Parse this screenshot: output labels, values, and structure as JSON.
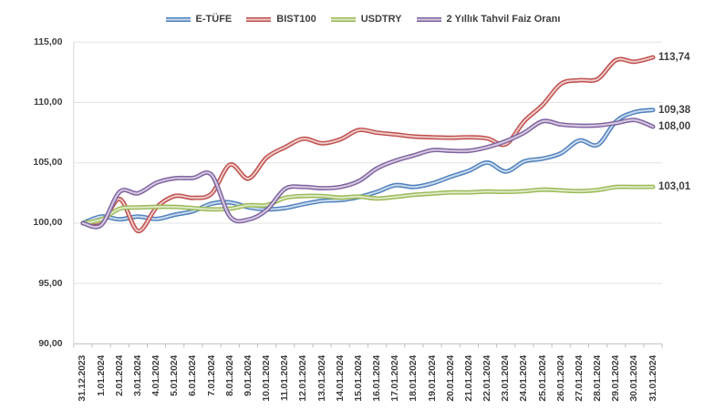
{
  "chart_data": {
    "type": "line",
    "title": "",
    "xlabel": "",
    "ylabel": "",
    "ylim": [
      90,
      115
    ],
    "y_tick_step": 5,
    "y_tick_labels": [
      "90,00",
      "95,00",
      "100,00",
      "105,00",
      "110,00",
      "115,00"
    ],
    "grid": "horizontal-only",
    "legend_position": "top-center",
    "line_style": "smoothed-tube",
    "axis_color": "#bfbfbf",
    "gridline_color": "#e3e3e3",
    "label_color": "#3f3f3f",
    "categories": [
      "31.12.2023",
      "1.01.2024",
      "2.01.2024",
      "3.01.2024",
      "4.01.2024",
      "5.01.2024",
      "6.01.2024",
      "7.01.2024",
      "8.01.2024",
      "9.01.2024",
      "10.01.2024",
      "11.01.2024",
      "12.01.2024",
      "13.01.2024",
      "14.01.2024",
      "15.01.2024",
      "16.01.2024",
      "17.01.2024",
      "18.01.2024",
      "19.01.2024",
      "20.01.2024",
      "21.01.2024",
      "22.01.2024",
      "23.01.2024",
      "24.01.2024",
      "25.01.2024",
      "26.01.2024",
      "27.01.2024",
      "28.01.2024",
      "29.01.2024",
      "30.01.2024",
      "31.01.2024"
    ],
    "series": [
      {
        "name": "E-TÜFE",
        "color": "#4f81bd",
        "core_color": "#c9d9ec",
        "end_label": "109,38",
        "end_value": 109.38,
        "values": [
          100.0,
          100.55,
          100.32,
          100.55,
          100.35,
          100.7,
          101.0,
          101.62,
          101.72,
          101.32,
          101.15,
          101.26,
          101.58,
          101.85,
          101.92,
          102.16,
          102.6,
          103.15,
          103.0,
          103.3,
          103.85,
          104.35,
          105.02,
          104.28,
          105.12,
          105.35,
          105.8,
          106.85,
          106.5,
          108.45,
          109.2,
          109.38
        ]
      },
      {
        "name": "BIST100",
        "color": "#c0504d",
        "core_color": "#eccac9",
        "end_label": "113,74",
        "end_value": 113.74,
        "values": [
          100.0,
          99.9,
          102.0,
          99.35,
          101.3,
          102.25,
          102.1,
          102.45,
          104.85,
          103.7,
          105.45,
          106.3,
          107.0,
          106.62,
          106.95,
          107.72,
          107.5,
          107.35,
          107.18,
          107.12,
          107.08,
          107.12,
          107.02,
          106.55,
          108.45,
          109.8,
          111.55,
          111.85,
          111.95,
          113.52,
          113.38,
          113.74
        ]
      },
      {
        "name": "USDTRY",
        "color": "#9bbb59",
        "core_color": "#dde8c5",
        "end_label": "103,01",
        "end_value": 103.01,
        "values": [
          100.0,
          100.3,
          101.2,
          101.3,
          101.35,
          101.35,
          101.25,
          101.15,
          101.2,
          101.48,
          101.5,
          102.1,
          102.25,
          102.25,
          102.12,
          102.2,
          102.05,
          102.18,
          102.35,
          102.45,
          102.55,
          102.55,
          102.62,
          102.6,
          102.65,
          102.78,
          102.72,
          102.66,
          102.75,
          103.0,
          103.0,
          103.01
        ]
      },
      {
        "name": "2 Yıllık Tahvil Faiz Oranı",
        "color": "#8064a2",
        "core_color": "#d4cade",
        "end_label": "108,00",
        "end_value": 108.0,
        "values": [
          100.0,
          99.85,
          102.6,
          102.48,
          103.35,
          103.72,
          103.75,
          104.0,
          100.55,
          100.3,
          101.1,
          102.85,
          103.0,
          102.9,
          103.0,
          103.48,
          104.55,
          105.18,
          105.62,
          106.05,
          106.0,
          106.0,
          106.3,
          106.8,
          107.5,
          108.45,
          108.18,
          108.08,
          108.1,
          108.3,
          108.55,
          108.0
        ]
      }
    ]
  }
}
